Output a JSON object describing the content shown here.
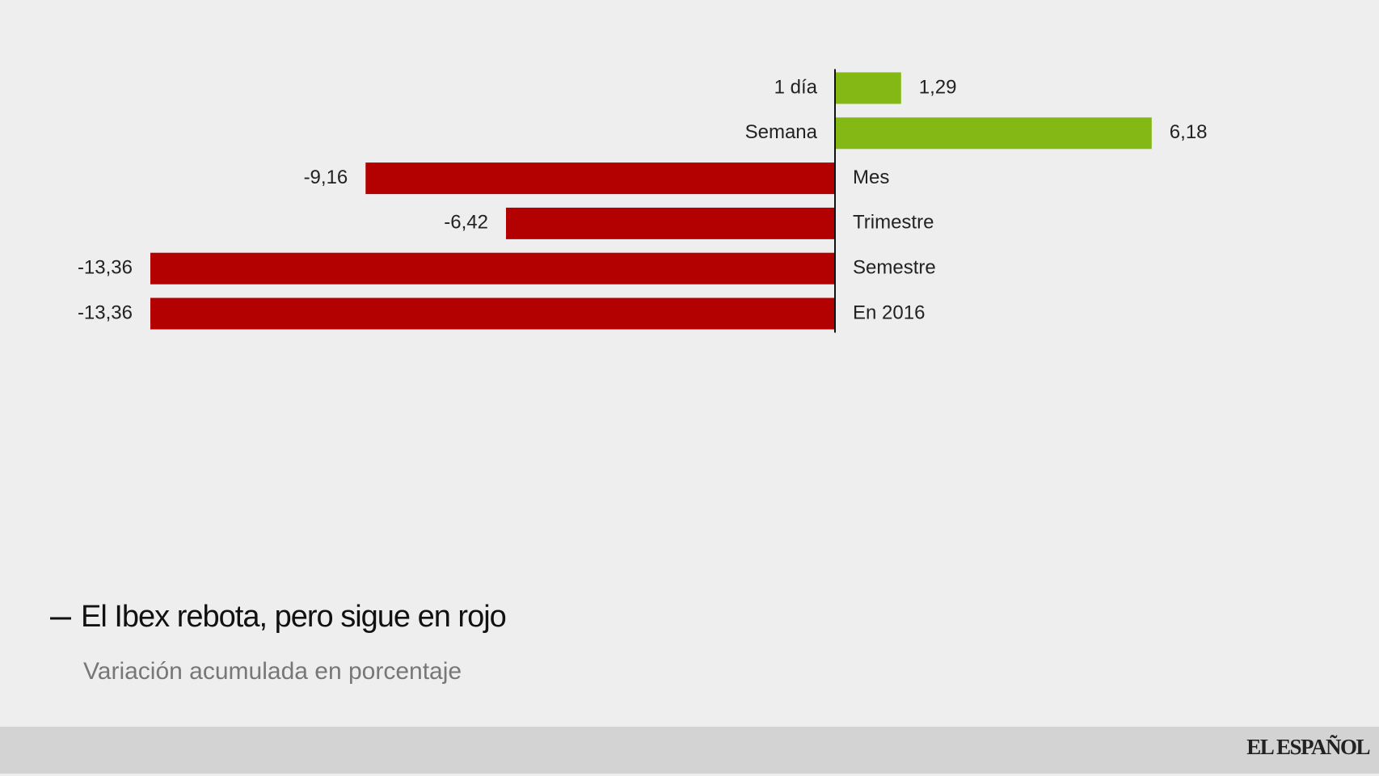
{
  "chart_data": {
    "type": "bar",
    "orientation": "horizontal",
    "title": "El Ibex rebota, pero sigue en rojo",
    "subtitle": "Variación acumulada en porcentaje",
    "categories": [
      "1 día",
      "Semana",
      "Mes",
      "Trimestre",
      "Semestre",
      "En 2016"
    ],
    "values": [
      1.29,
      6.18,
      -9.16,
      -6.42,
      -13.36,
      -13.36
    ],
    "value_labels": [
      "1,29",
      "6,18",
      "-9,16",
      "-6,42",
      "-13,36",
      "-13,36"
    ],
    "colors": [
      "#84b814",
      "#84b814",
      "#b30000",
      "#b30000",
      "#b30000",
      "#b30000"
    ]
  },
  "footer": {
    "brand": "EL ESPAÑOL"
  }
}
